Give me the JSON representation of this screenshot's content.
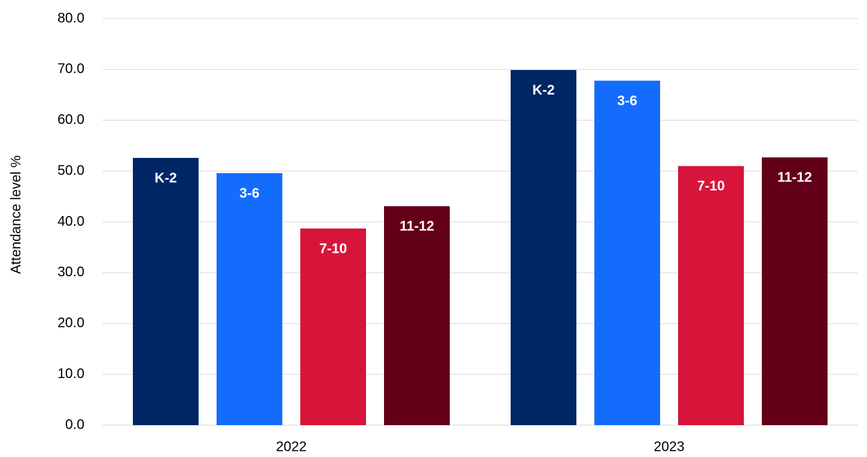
{
  "chart_data": {
    "type": "bar",
    "y_axis_label": "Attendance level %",
    "categories": [
      "2022",
      "2023"
    ],
    "series": [
      {
        "name": "K-2",
        "color": "#002664",
        "values": [
          52.6,
          69.9
        ]
      },
      {
        "name": "3-6",
        "color": "#146cfd",
        "values": [
          49.6,
          67.8
        ]
      },
      {
        "name": "7-10",
        "color": "#d7153a",
        "values": [
          38.7,
          51.0
        ]
      },
      {
        "name": "11-12",
        "color": "#630019",
        "values": [
          43.1,
          52.7
        ]
      }
    ],
    "ylim": [
      0,
      80
    ],
    "yticks": [
      {
        "value": 0,
        "label": "0.0"
      },
      {
        "value": 10,
        "label": "10.0"
      },
      {
        "value": 20,
        "label": "20.0"
      },
      {
        "value": 30,
        "label": "30.0"
      },
      {
        "value": 40,
        "label": "40.0"
      },
      {
        "value": 50,
        "label": "50.0"
      },
      {
        "value": 60,
        "label": "60.0"
      },
      {
        "value": 70,
        "label": "70.0"
      },
      {
        "value": 80,
        "label": "80.0"
      }
    ],
    "grid": true
  }
}
